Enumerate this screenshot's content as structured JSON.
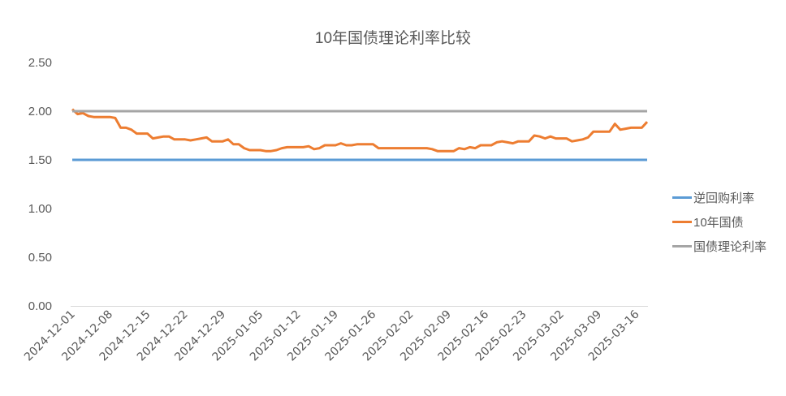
{
  "chart_data": {
    "type": "line",
    "title": "10年国债理论利率比较",
    "xlabel": "",
    "ylabel": "",
    "ylim": [
      0,
      2.5
    ],
    "yticks": [
      "0.00",
      "0.50",
      "1.00",
      "1.50",
      "2.00",
      "2.50"
    ],
    "grid": false,
    "legend_position": "right",
    "x_start": "2024-12-01",
    "x_end": "2025-03-17",
    "xtick_labels": [
      "2024-12-01",
      "2024-12-08",
      "2024-12-15",
      "2024-12-22",
      "2024-12-29",
      "2025-01-05",
      "2025-01-12",
      "2025-01-19",
      "2025-01-26",
      "2025-02-02",
      "2025-02-09",
      "2025-02-16",
      "2025-02-23",
      "2025-03-02",
      "2025-03-09",
      "2025-03-16"
    ],
    "series": [
      {
        "name": "逆回购利率",
        "color": "#5B9BD5",
        "constant": 1.5
      },
      {
        "name": "10年国债",
        "color": "#ED7D31",
        "values": [
          2.02,
          1.97,
          1.98,
          1.95,
          1.94,
          1.94,
          1.94,
          1.94,
          1.93,
          1.83,
          1.83,
          1.81,
          1.77,
          1.77,
          1.77,
          1.72,
          1.73,
          1.74,
          1.74,
          1.71,
          1.71,
          1.71,
          1.7,
          1.71,
          1.72,
          1.73,
          1.69,
          1.69,
          1.69,
          1.71,
          1.66,
          1.66,
          1.62,
          1.6,
          1.6,
          1.6,
          1.59,
          1.59,
          1.6,
          1.62,
          1.63,
          1.63,
          1.63,
          1.63,
          1.64,
          1.61,
          1.62,
          1.65,
          1.65,
          1.65,
          1.67,
          1.65,
          1.65,
          1.66,
          1.66,
          1.66,
          1.66,
          1.62,
          1.62,
          1.62,
          1.62,
          1.62,
          1.62,
          1.62,
          1.62,
          1.62,
          1.62,
          1.61,
          1.59,
          1.59,
          1.59,
          1.59,
          1.62,
          1.61,
          1.63,
          1.62,
          1.65,
          1.65,
          1.65,
          1.68,
          1.69,
          1.68,
          1.67,
          1.69,
          1.69,
          1.69,
          1.75,
          1.74,
          1.72,
          1.74,
          1.72,
          1.72,
          1.72,
          1.69,
          1.7,
          1.71,
          1.73,
          1.79,
          1.79,
          1.79,
          1.79,
          1.87,
          1.81,
          1.82,
          1.83,
          1.83,
          1.83,
          1.89
        ]
      },
      {
        "name": "国债理论利率",
        "color": "#A5A5A5",
        "constant": 2.0
      }
    ]
  },
  "legend": {
    "items": [
      {
        "label": "逆回购利率",
        "color": "#5B9BD5"
      },
      {
        "label": "10年国债",
        "color": "#ED7D31"
      },
      {
        "label": "国债理论利率",
        "color": "#A5A5A5"
      }
    ]
  }
}
